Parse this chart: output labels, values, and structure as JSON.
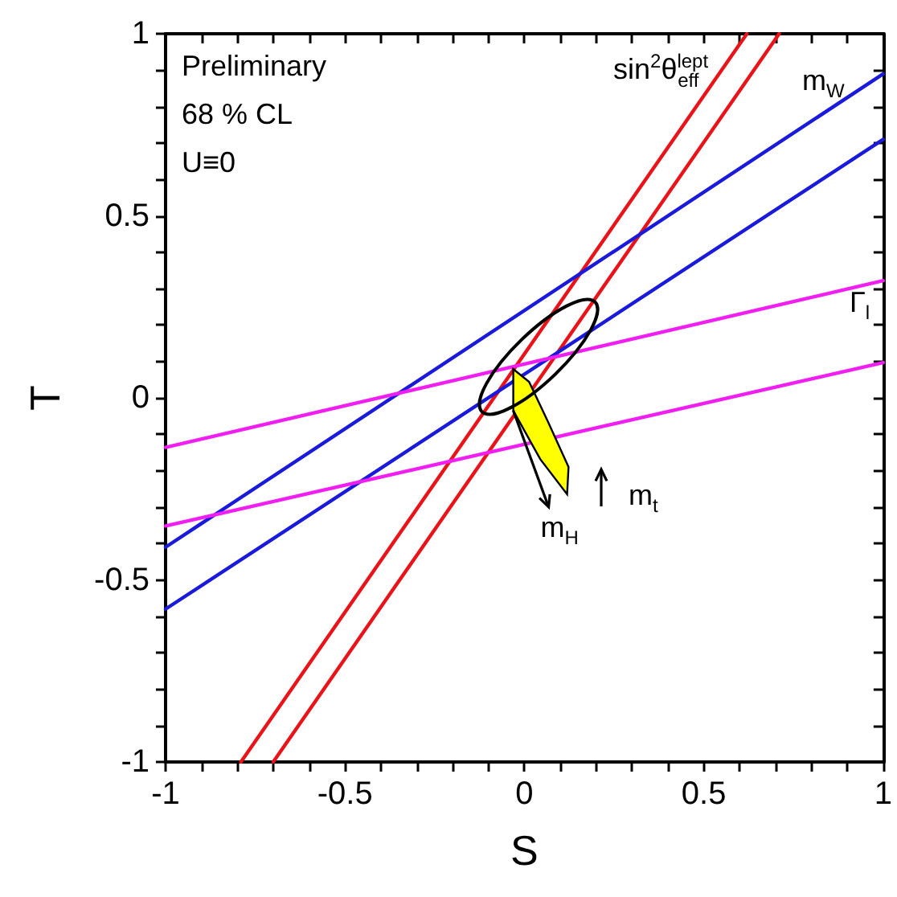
{
  "chart_data": {
    "type": "line",
    "xlabel": "S",
    "ylabel": "T",
    "xlim": [
      -1,
      1
    ],
    "ylim": [
      -1,
      1
    ],
    "xticks": [
      -1,
      {
        "value": -0.9,
        "label": null
      },
      {
        "value": -0.8,
        "label": null
      },
      {
        "value": -0.7,
        "label": null
      },
      {
        "value": -0.6,
        "label": null
      },
      -0.5,
      {
        "value": -0.4,
        "label": null
      },
      {
        "value": -0.3,
        "label": null
      },
      {
        "value": -0.2,
        "label": null
      },
      {
        "value": -0.1,
        "label": null
      },
      0,
      {
        "value": 0.1,
        "label": null
      },
      {
        "value": 0.2,
        "label": null
      },
      {
        "value": 0.3,
        "label": null
      },
      {
        "value": 0.4,
        "label": null
      },
      0.5,
      {
        "value": 0.6,
        "label": null
      },
      {
        "value": 0.7,
        "label": null
      },
      {
        "value": 0.8,
        "label": null
      },
      {
        "value": 0.9,
        "label": null
      },
      1
    ],
    "yticks": [
      -1,
      {
        "value": -0.9,
        "label": null
      },
      {
        "value": -0.8,
        "label": null
      },
      {
        "value": -0.7,
        "label": null
      },
      {
        "value": -0.6,
        "label": null
      },
      -0.5,
      {
        "value": -0.4,
        "label": null
      },
      {
        "value": -0.3,
        "label": null
      },
      {
        "value": -0.2,
        "label": null
      },
      {
        "value": -0.1,
        "label": null
      },
      0,
      {
        "value": 0.1,
        "label": null
      },
      {
        "value": 0.2,
        "label": null
      },
      {
        "value": 0.3,
        "label": null
      },
      {
        "value": 0.4,
        "label": null
      },
      0.5,
      {
        "value": 0.6,
        "label": null
      },
      {
        "value": 0.7,
        "label": null
      },
      {
        "value": 0.8,
        "label": null
      },
      {
        "value": 0.9,
        "label": null
      },
      1
    ],
    "grid": false,
    "marker": "none",
    "line_style": "solid",
    "series": [
      {
        "color": "#e8141a",
        "x": [
          -0.79,
          0.62
        ],
        "values": [
          -1,
          1
        ]
      },
      {
        "color": "#e8141a",
        "x": [
          -0.7,
          0.71
        ],
        "values": [
          -1,
          1
        ]
      },
      {
        "color": "#1a1adb",
        "x": [
          -1,
          1
        ],
        "values": [
          -0.41,
          0.89
        ]
      },
      {
        "color": "#1a1adb",
        "x": [
          -1,
          1
        ],
        "values": [
          -0.58,
          0.71
        ]
      },
      {
        "color": "#f01ef0",
        "x": [
          -1,
          1
        ],
        "values": [
          -0.136,
          0.322
        ]
      },
      {
        "color": "#f01ef0",
        "x": [
          -1,
          1
        ],
        "values": [
          -0.352,
          0.097
        ]
      },
      {
        "type": "area",
        "color": "#ffff00",
        "x": [
          -0.031,
          0.013,
          0.066,
          0.123,
          0.119,
          0.044,
          -0.031
        ],
        "values": [
          0.079,
          0.044,
          -0.066,
          -0.19,
          -0.265,
          -0.168,
          -0.035
        ]
      }
    ],
    "annotations": [
      "Preliminary",
      "68 % CL",
      "U≡0",
      "sin$^{2}$θ$^{lept}$$_{eff}$",
      "m$_{W}$",
      "Γ$_{l}$",
      {
        "text": "m$_{H}$",
        "x": -0.031,
        "y": -0.035
      },
      "m$_{t}$"
    ]
  }
}
